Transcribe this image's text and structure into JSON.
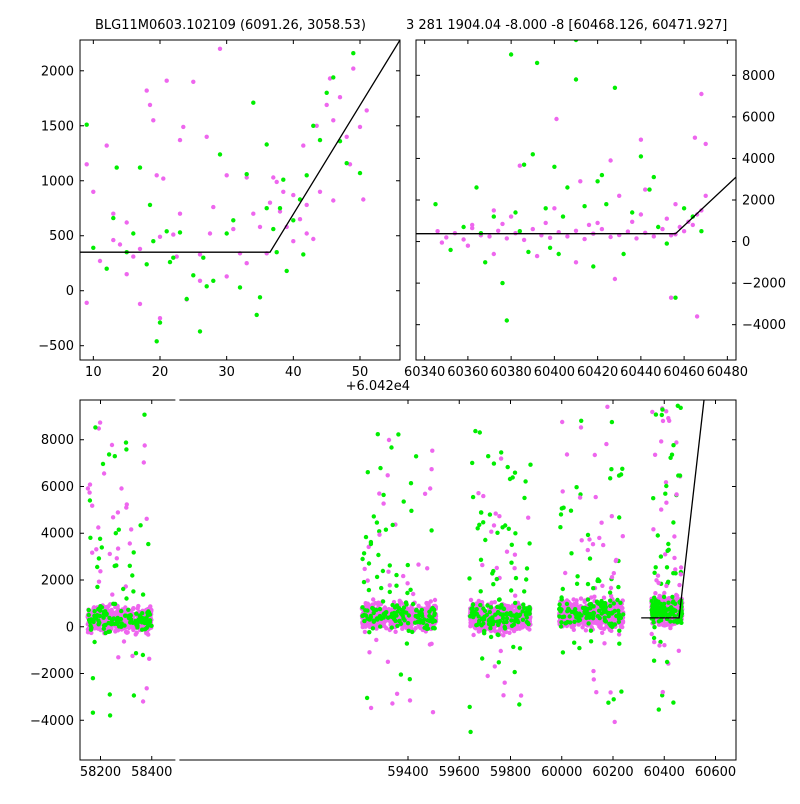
{
  "colors": {
    "pink": "#ee66ee",
    "green": "#00ee00",
    "line": "#000000",
    "axes": "#000000"
  },
  "chart_data": [
    {
      "type": "scatter",
      "panel": "top-left",
      "title": "BLG11M0603.102109 (6091.26, 3058.53)",
      "xlim": [
        8,
        56
      ],
      "ylim": [
        -630,
        2280
      ],
      "xticks": [
        10,
        20,
        30,
        40,
        50
      ],
      "yticks": [
        -500,
        0,
        500,
        1000,
        1500,
        2000
      ],
      "y_axis_side": "left",
      "series": [
        {
          "color": "pink",
          "points": [
            [
              9,
              1150
            ],
            [
              10,
              900
            ],
            [
              12,
              1320
            ],
            [
              13,
              700
            ],
            [
              14,
              420
            ],
            [
              15,
              620
            ],
            [
              16,
              310
            ],
            [
              17,
              380
            ],
            [
              18,
              1820
            ],
            [
              18.5,
              1690
            ],
            [
              19,
              1550
            ],
            [
              19.5,
              1050
            ],
            [
              20,
              490
            ],
            [
              20.5,
              1020
            ],
            [
              21,
              1910
            ],
            [
              22,
              510
            ],
            [
              23,
              1370
            ],
            [
              23.5,
              1490
            ],
            [
              24,
              -80
            ],
            [
              25,
              1900
            ],
            [
              26,
              330
            ],
            [
              27,
              1400
            ],
            [
              28,
              760
            ],
            [
              29,
              2200
            ],
            [
              30,
              1050
            ],
            [
              31,
              560
            ],
            [
              32,
              340
            ],
            [
              33,
              1030
            ],
            [
              35,
              580
            ],
            [
              36,
              340
            ],
            [
              37,
              1030
            ],
            [
              38,
              720
            ],
            [
              39,
              580
            ],
            [
              40,
              870
            ],
            [
              41,
              650
            ],
            [
              42,
              780
            ],
            [
              43,
              470
            ],
            [
              44,
              900
            ],
            [
              45,
              1690
            ],
            [
              46,
              1550
            ],
            [
              47,
              1760
            ],
            [
              48,
              1400
            ],
            [
              49,
              2020
            ],
            [
              50,
              1490
            ],
            [
              51,
              1640
            ],
            [
              38.5,
              900
            ],
            [
              41.5,
              1320
            ],
            [
              37.5,
              990
            ],
            [
              43.5,
              1500
            ],
            [
              45.5,
              1930
            ],
            [
              34,
              700
            ],
            [
              36.5,
              800
            ],
            [
              27.5,
              520
            ],
            [
              23,
              700
            ],
            [
              30,
              130
            ],
            [
              26,
              90
            ],
            [
              20,
              -250
            ],
            [
              17,
              -120
            ],
            [
              15,
              150
            ],
            [
              13,
              460
            ],
            [
              11,
              270
            ],
            [
              9,
              -110
            ],
            [
              22.5,
              310
            ],
            [
              40,
              450
            ],
            [
              42,
              520
            ],
            [
              46,
              820
            ],
            [
              50.5,
              830
            ],
            [
              33,
              250
            ],
            [
              48.5,
              1150
            ]
          ]
        },
        {
          "color": "green",
          "points": [
            [
              9,
              1510
            ],
            [
              10,
              390
            ],
            [
              12,
              200
            ],
            [
              13,
              660
            ],
            [
              13.5,
              1120
            ],
            [
              15,
              350
            ],
            [
              16,
              520
            ],
            [
              17,
              1120
            ],
            [
              18,
              240
            ],
            [
              18.5,
              780
            ],
            [
              19,
              450
            ],
            [
              20,
              -290
            ],
            [
              21,
              540
            ],
            [
              21.5,
              260
            ],
            [
              22,
              300
            ],
            [
              23,
              530
            ],
            [
              24,
              -75
            ],
            [
              25,
              140
            ],
            [
              26,
              -370
            ],
            [
              26.5,
              300
            ],
            [
              27,
              40
            ],
            [
              28,
              90
            ],
            [
              29,
              1240
            ],
            [
              30,
              520
            ],
            [
              31,
              640
            ],
            [
              32,
              30
            ],
            [
              33,
              1060
            ],
            [
              34,
              1710
            ],
            [
              35,
              -60
            ],
            [
              36,
              750
            ],
            [
              37,
              560
            ],
            [
              38,
              750
            ],
            [
              38.5,
              1010
            ],
            [
              39,
              180
            ],
            [
              40,
              640
            ],
            [
              41,
              830
            ],
            [
              42,
              1050
            ],
            [
              43,
              1500
            ],
            [
              44,
              1370
            ],
            [
              45,
              1800
            ],
            [
              46,
              1940
            ],
            [
              47,
              1360
            ],
            [
              48,
              1160
            ],
            [
              49,
              2160
            ],
            [
              50,
              1070
            ],
            [
              34.5,
              -220
            ],
            [
              19.5,
              -460
            ],
            [
              36,
              1330
            ],
            [
              41.5,
              330
            ],
            [
              37.5,
              350
            ]
          ]
        }
      ],
      "fit_line": [
        [
          8,
          350
        ],
        [
          36.5,
          350
        ],
        [
          56,
          2280
        ]
      ]
    },
    {
      "type": "scatter",
      "panel": "top-right",
      "title": "3 281 1904.04 -8.000 -8 [60468.126, 60471.927]",
      "xlim": [
        60336,
        60484
      ],
      "ylim": [
        -5700,
        9700
      ],
      "xticks": [
        60340,
        60360,
        60380,
        60400,
        60420,
        60440,
        60460,
        60480
      ],
      "yticks": [
        -4000,
        -2000,
        0,
        2000,
        4000,
        6000,
        8000
      ],
      "y_axis_side": "right",
      "x_offset_label": "+6.042e4",
      "series": [
        {
          "color": "pink",
          "points": [
            [
              60346,
              500
            ],
            [
              60350,
              200
            ],
            [
              60354,
              400
            ],
            [
              60358,
              100
            ],
            [
              60362,
              650
            ],
            [
              60366,
              300
            ],
            [
              60370,
              250
            ],
            [
              60374,
              520
            ],
            [
              60378,
              150
            ],
            [
              60382,
              400
            ],
            [
              60386,
              80
            ],
            [
              60390,
              600
            ],
            [
              60394,
              300
            ],
            [
              60398,
              180
            ],
            [
              60402,
              450
            ],
            [
              60406,
              250
            ],
            [
              60410,
              520
            ],
            [
              60414,
              120
            ],
            [
              60418,
              380
            ],
            [
              60422,
              600
            ],
            [
              60426,
              220
            ],
            [
              60430,
              310
            ],
            [
              60434,
              480
            ],
            [
              60438,
              150
            ],
            [
              60442,
              420
            ],
            [
              60446,
              250
            ],
            [
              60450,
              600
            ],
            [
              60454,
              300
            ],
            [
              60458,
              700
            ],
            [
              60462,
              950
            ],
            [
              60466,
              1300
            ],
            [
              60468,
              1500
            ],
            [
              60464,
              800
            ],
            [
              60460,
              500
            ],
            [
              60456,
              350
            ],
            [
              60384,
              3650
            ],
            [
              60401,
              5900
            ],
            [
              60426,
              3900
            ],
            [
              60440,
              4900
            ],
            [
              60442,
              2500
            ],
            [
              60465,
              5000
            ],
            [
              60468,
              7100
            ],
            [
              60470,
              4700
            ],
            [
              60466,
              -3600
            ],
            [
              60454,
              -2700
            ],
            [
              60428,
              -1800
            ],
            [
              60410,
              -1000
            ],
            [
              60392,
              -700
            ],
            [
              60372,
              -600
            ],
            [
              60360,
              -200
            ],
            [
              60348,
              -50
            ],
            [
              60376,
              850
            ],
            [
              60396,
              900
            ],
            [
              60416,
              800
            ],
            [
              60436,
              950
            ],
            [
              60452,
              1100
            ],
            [
              60362,
              800
            ],
            [
              60380,
              1200
            ],
            [
              60400,
              1600
            ],
            [
              60420,
              900
            ],
            [
              60440,
              1300
            ],
            [
              60456,
              1800
            ],
            [
              60470,
              2200
            ],
            [
              60372,
              1500
            ],
            [
              60412,
              2900
            ],
            [
              60430,
              2200
            ]
          ]
        },
        {
          "color": "green",
          "points": [
            [
              60345,
              1800
            ],
            [
              60352,
              -400
            ],
            [
              60358,
              700
            ],
            [
              60364,
              2600
            ],
            [
              60368,
              -1000
            ],
            [
              60372,
              1200
            ],
            [
              60376,
              -2000
            ],
            [
              60378,
              -3800
            ],
            [
              60380,
              9000
            ],
            [
              60382,
              1400
            ],
            [
              60386,
              3700
            ],
            [
              60388,
              -500
            ],
            [
              60390,
              4200
            ],
            [
              60392,
              8600
            ],
            [
              60396,
              1600
            ],
            [
              60400,
              3600
            ],
            [
              60402,
              -600
            ],
            [
              60406,
              2600
            ],
            [
              60410,
              9700
            ],
            [
              60410,
              7800
            ],
            [
              60414,
              1700
            ],
            [
              60418,
              -1200
            ],
            [
              60420,
              2900
            ],
            [
              60424,
              1800
            ],
            [
              60428,
              7400
            ],
            [
              60432,
              -600
            ],
            [
              60436,
              1400
            ],
            [
              60440,
              4100
            ],
            [
              60444,
              2500
            ],
            [
              60448,
              700
            ],
            [
              60452,
              -100
            ],
            [
              60456,
              -2700
            ],
            [
              60460,
              1600
            ],
            [
              60464,
              1200
            ],
            [
              60468,
              500
            ],
            [
              60366,
              400
            ],
            [
              60398,
              -300
            ],
            [
              60422,
              3200
            ],
            [
              60446,
              3100
            ],
            [
              60404,
              1200
            ],
            [
              60384,
              500
            ]
          ]
        }
      ],
      "fit_line": [
        [
          60336,
          380
        ],
        [
          60456,
          380
        ],
        [
          60484,
          3100
        ]
      ]
    },
    {
      "type": "scatter",
      "panel": "bottom",
      "xlim": [
        58120,
        60680
      ],
      "ylim": [
        -5700,
        9700
      ],
      "xticks": [
        58200,
        58400,
        59400,
        59600,
        59800,
        60000,
        60200,
        60400,
        60600
      ],
      "yticks": [
        -4000,
        -2000,
        0,
        2000,
        4000,
        6000,
        8000
      ],
      "y_axis_side": "left",
      "axis_break": true,
      "seasons": [
        {
          "x_range": [
            58150,
            58400
          ],
          "core_ylim": [
            -600,
            1200
          ],
          "outlier_ylim": [
            -4600,
            9100
          ]
        },
        {
          "x_range": [
            59220,
            59510
          ],
          "core_ylim": [
            -500,
            1400
          ],
          "outlier_ylim": [
            -3800,
            9200
          ]
        },
        {
          "x_range": [
            59640,
            59880
          ],
          "core_ylim": [
            -700,
            1500
          ],
          "outlier_ylim": [
            -5400,
            8500
          ]
        },
        {
          "x_range": [
            59990,
            60240
          ],
          "core_ylim": [
            -500,
            1600
          ],
          "outlier_ylim": [
            -4800,
            9500
          ]
        },
        {
          "x_range": [
            60350,
            60470
          ],
          "core_ylim": [
            -300,
            1700
          ],
          "outlier_ylim": [
            -3800,
            9500
          ]
        }
      ],
      "fit_line": [
        [
          60310,
          380
        ],
        [
          60458,
          380
        ],
        [
          60555,
          9700
        ]
      ]
    }
  ]
}
